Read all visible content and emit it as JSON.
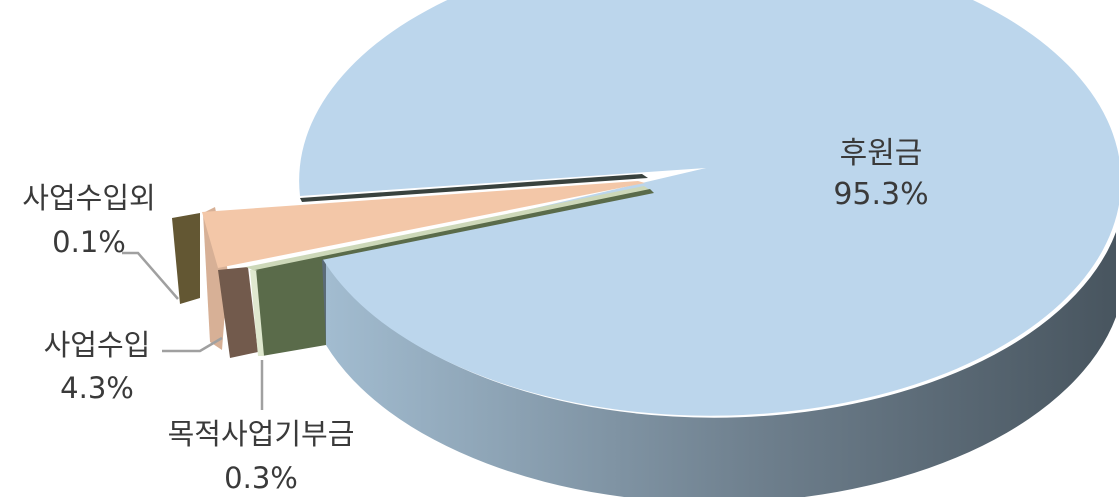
{
  "chart_data": {
    "type": "pie",
    "style": "3d-exploded",
    "slices": [
      {
        "label": "후원금",
        "value": 95.3,
        "value_label": "95.3%",
        "color": "#bcd6ec",
        "side_dark": "#48555f",
        "side_light": "#a2bcd0"
      },
      {
        "label": "목적사업기부금",
        "value": 0.3,
        "value_label": "0.3%",
        "color": "#cdd8b9",
        "side_dark": "#5a6b4a",
        "side_light": "#5a6b4a"
      },
      {
        "label": "사업수입",
        "value": 4.3,
        "value_label": "4.3%",
        "color": "#f3c7a8",
        "side_dark": "#d7b096",
        "side_light": "#d7b096"
      },
      {
        "label": "사업수입외",
        "value": 0.1,
        "value_label": "0.1%",
        "color": "#4f4628",
        "side_dark": "#635733",
        "side_light": "#635733"
      }
    ],
    "leader_color": "#a0a0a0"
  }
}
